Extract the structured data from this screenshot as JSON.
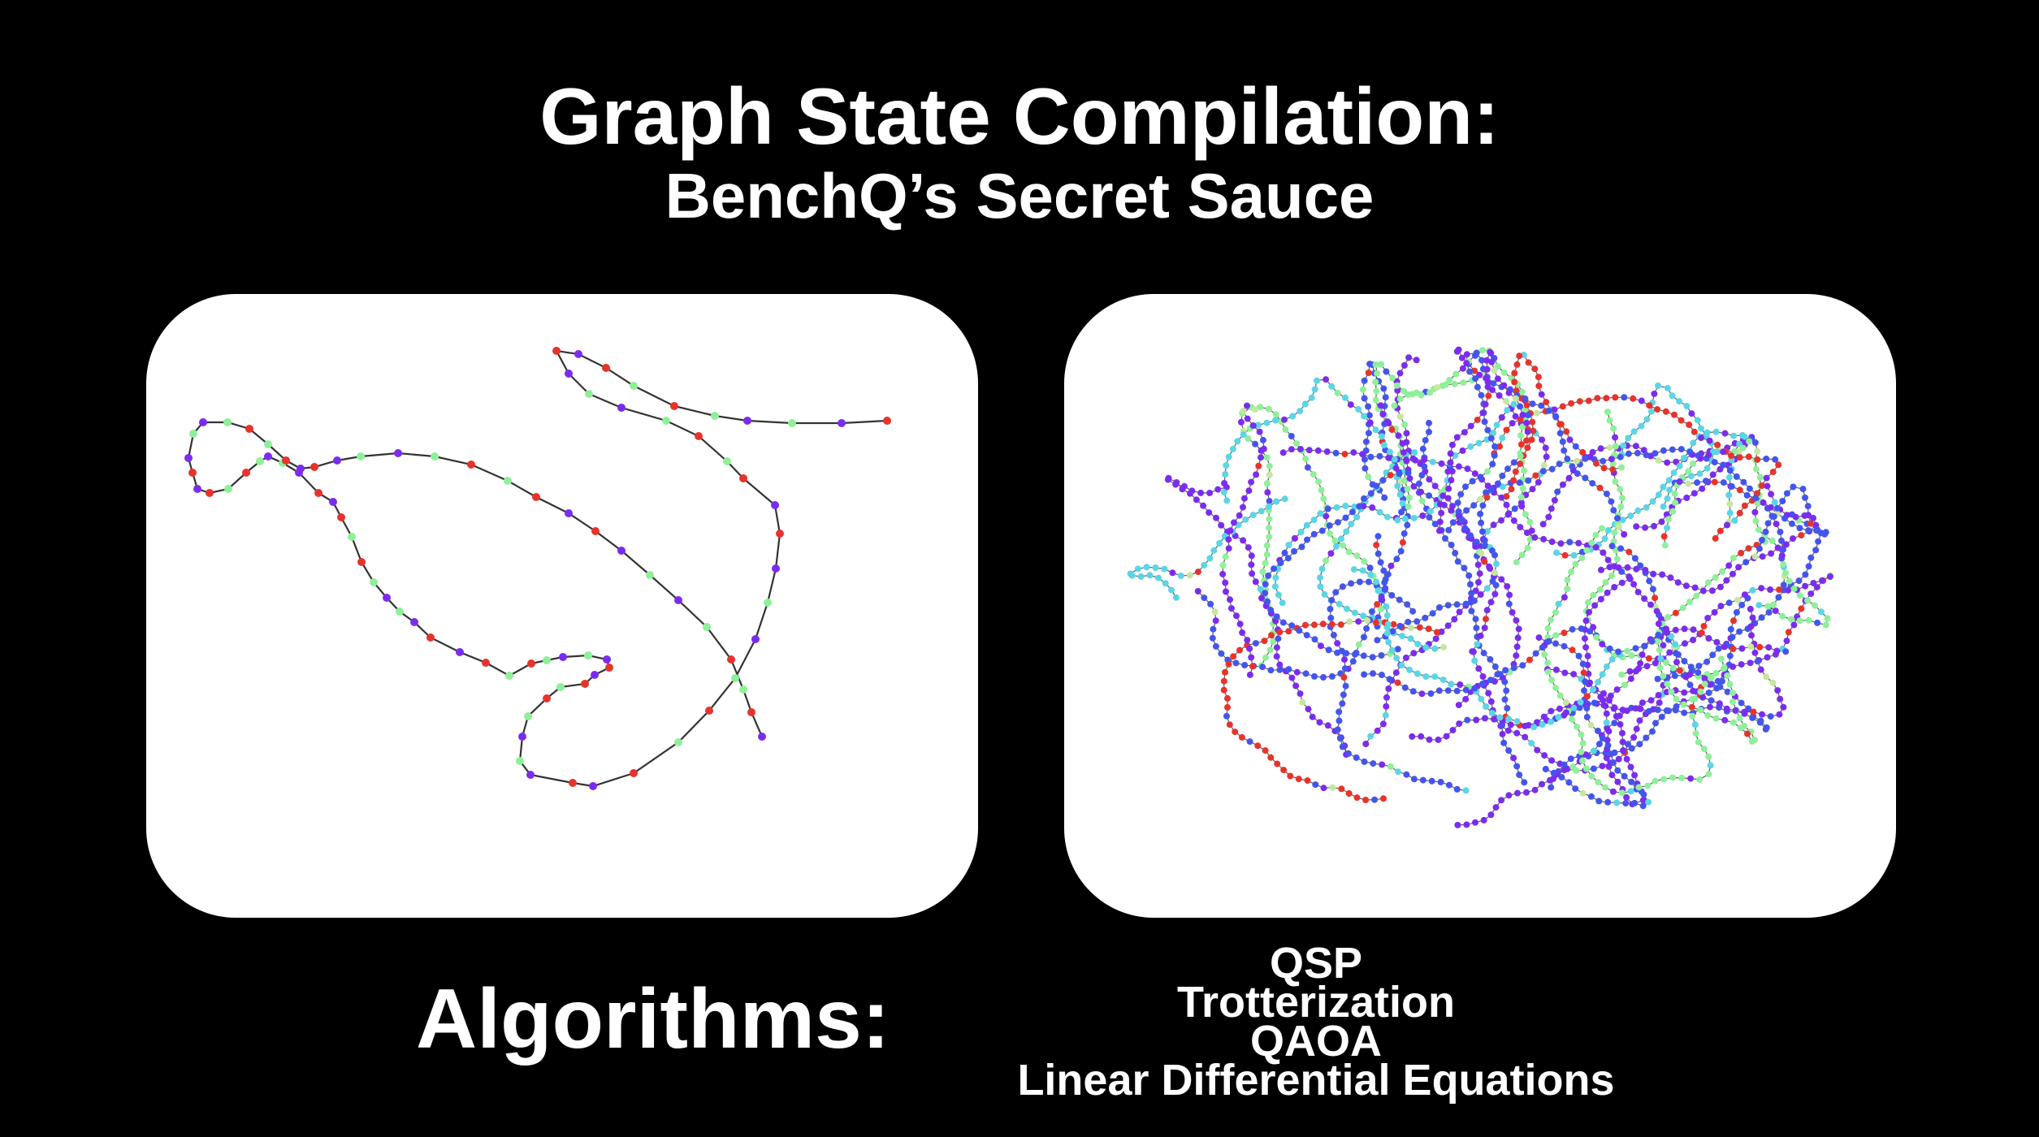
{
  "slide": {
    "title": "Graph State Compilation:",
    "subtitle": "BenchQ’s Secret Sauce",
    "algorithms_heading": "Algorithms:",
    "algorithms": [
      "QSP",
      "Trotterization",
      "QAOA",
      "Linear Differential Equations"
    ]
  },
  "graphs": {
    "left": {
      "kind": "sparse-chain"
    },
    "right": {
      "kind": "dense-tangle"
    }
  },
  "colors": {
    "background": "#000000",
    "text": "#ffffff",
    "panel": "#ffffff",
    "edge": "#333333",
    "node_red": "#e8332b",
    "node_purple": "#7b2cf0",
    "node_green": "#8ff09a",
    "node_blue": "#4455ee",
    "node_cyan": "#5ad6e6",
    "node_yellowgreen": "#c8e6a0"
  }
}
